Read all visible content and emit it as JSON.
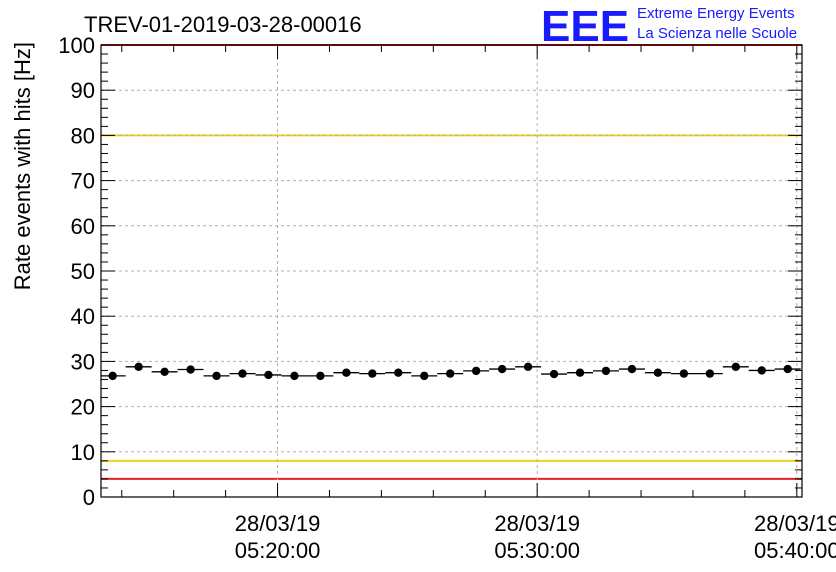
{
  "chart_data": {
    "type": "scatter",
    "title": "TREV-01-2019-03-28-00016",
    "ylabel": "Rate events with hits [Hz]",
    "xlabel": "",
    "ylim": [
      0,
      100
    ],
    "yticks": [
      "0",
      "10",
      "20",
      "30",
      "40",
      "50",
      "60",
      "70",
      "80",
      "90",
      "100"
    ],
    "xlim_minutes": [
      -6.8,
      20.2
    ],
    "xticks": [
      {
        "minutes": 0,
        "date": "28/03/19",
        "time": "05:20:00"
      },
      {
        "minutes": 10,
        "date": "28/03/19",
        "time": "05:30:00"
      },
      {
        "minutes": 20,
        "date": "28/03/19",
        "time": "05:40:00"
      }
    ],
    "x_minutes": [
      -6.35,
      -5.35,
      -4.35,
      -3.35,
      -2.35,
      -1.35,
      -0.35,
      0.65,
      1.65,
      2.65,
      3.65,
      4.65,
      5.65,
      6.65,
      7.65,
      8.65,
      9.65,
      10.65,
      11.65,
      12.65,
      13.65,
      14.65,
      15.65,
      16.65,
      17.65,
      18.65,
      19.65
    ],
    "values": [
      26.8,
      28.8,
      27.7,
      28.2,
      26.8,
      27.3,
      27.0,
      26.8,
      26.8,
      27.5,
      27.3,
      27.5,
      26.8,
      27.3,
      27.9,
      28.3,
      28.8,
      27.2,
      27.5,
      27.9,
      28.3,
      27.5,
      27.3,
      27.3,
      28.8,
      28.0,
      28.3
    ],
    "thresholds": [
      {
        "value": 100,
        "color": "#e8202a"
      },
      {
        "value": 80,
        "color": "#f2d117"
      },
      {
        "value": 8,
        "color": "#f2d117"
      },
      {
        "value": 4,
        "color": "#e8202a"
      }
    ],
    "grid": true
  },
  "logo": {
    "mark": "EEE",
    "line1": "Extreme Energy Events",
    "line2": "La Scienza nelle Scuole"
  },
  "colors": {
    "marker": "#000000",
    "logo": "#1a1aff",
    "grid": "#b0b0b0"
  }
}
